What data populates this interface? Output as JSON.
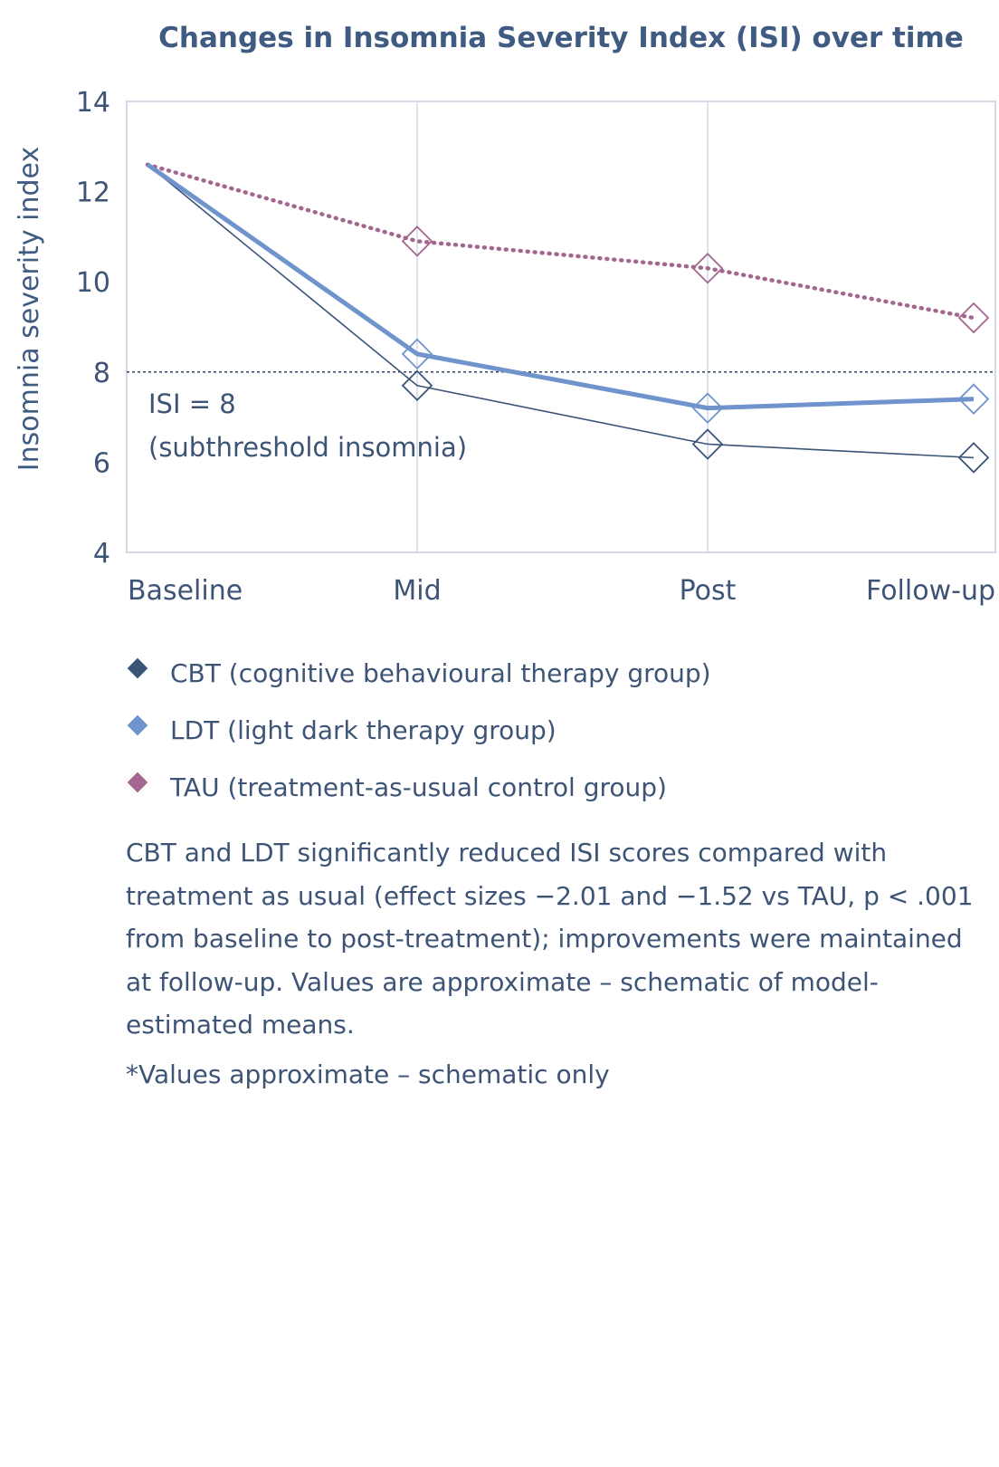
{
  "chart_data": {
    "type": "line",
    "title": "Changes in Insomnia Severity Index (ISI) over time",
    "xlabel": "",
    "ylabel": "Insomnia severity index",
    "categories": [
      "Baseline",
      "Mid",
      "Post",
      "Follow-up"
    ],
    "ylim": [
      4,
      14
    ],
    "yticks": [
      "4",
      "6",
      "8",
      "10",
      "12",
      "14"
    ],
    "grid": "vertical at categories",
    "series": [
      {
        "name": "CBT (cognitive behavioural therapy group)",
        "values": [
          12.6,
          7.7,
          6.4,
          6.1
        ],
        "color": "#3b5578",
        "style": "thin-solid"
      },
      {
        "name": "LDT (light dark therapy group)",
        "values": [
          12.6,
          8.4,
          7.2,
          7.4
        ],
        "color": "#6f93cc",
        "style": "thick-solid"
      },
      {
        "name": "TAU (treatment-as-usual control group)",
        "values": [
          12.6,
          10.9,
          10.3,
          9.2
        ],
        "color": "#a3668e",
        "style": "dotted"
      }
    ],
    "reference_line": {
      "value": 8,
      "label_line1": "ISI = 8",
      "label_line2": "(subthreshold insomnia)"
    },
    "legend_placement": "below"
  },
  "text": {
    "description": "CBT and LDT significantly reduced ISI scores compared with treatment as usual (effect sizes −2.01 and −1.52 vs TAU, p < .001 from baseline to post-treatment); improvements were maintained at follow-up. Values are approximate – schematic of model-estimated means.",
    "footnote": "*Values approximate – schematic only"
  }
}
